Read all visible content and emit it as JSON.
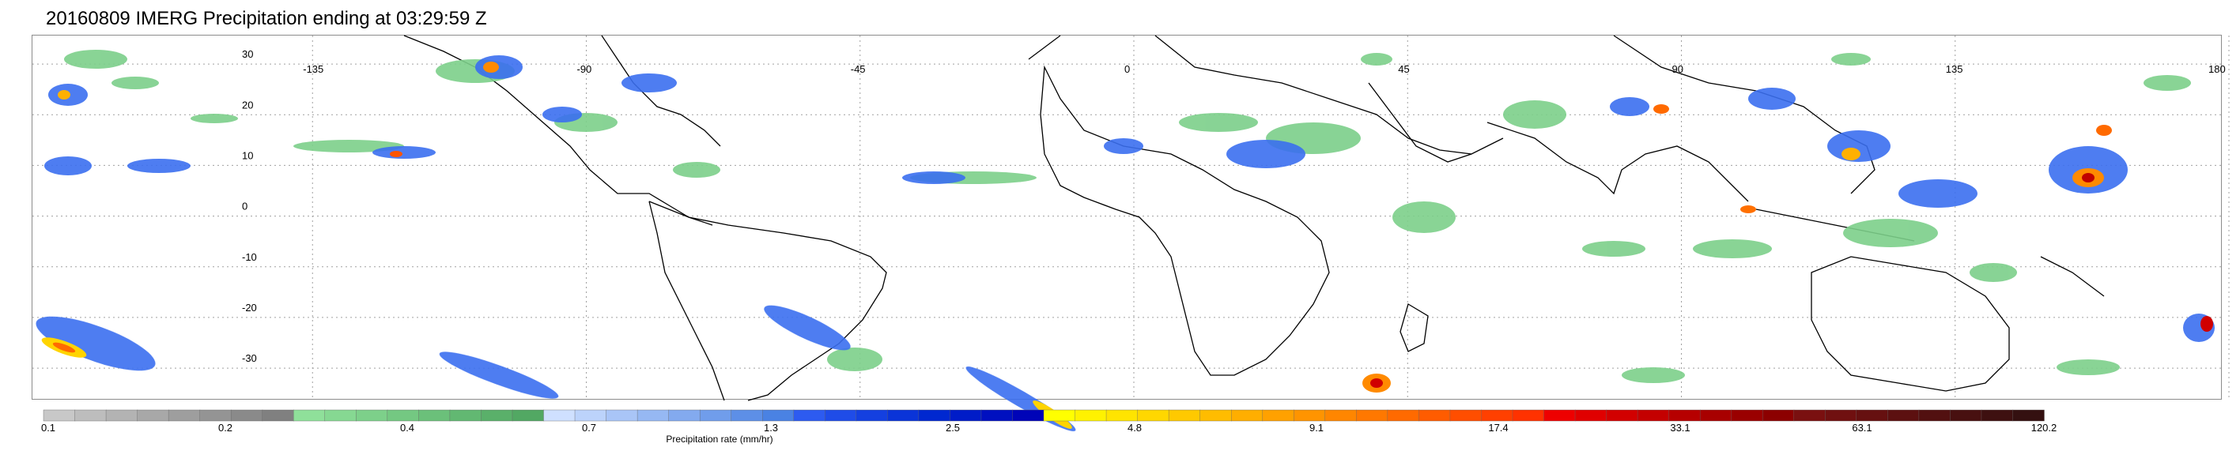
{
  "title": "20160809 IMERG Precipitation ending at 03:29:59 Z",
  "map": {
    "longitude_labels": [
      "-135",
      "-90",
      "-45",
      "0",
      "45",
      "90",
      "135",
      "180"
    ],
    "latitude_labels": [
      "30",
      "20",
      "10",
      "0",
      "-10",
      "-20",
      "-30"
    ],
    "gridlines": "dotted"
  },
  "colorbar": {
    "label": "Precipitation rate (mm/hr)",
    "tick_labels": [
      "0.1",
      "0.2",
      "0.4",
      "0.7",
      "1.3",
      "2.5",
      "4.8",
      "9.1",
      "17.4",
      "33.1",
      "63.1",
      "120.2"
    ],
    "colors": [
      "#c8c8c8",
      "#bdbdbd",
      "#b3b3b3",
      "#a8a8a8",
      "#9e9e9e",
      "#949494",
      "#8a8a8a",
      "#808080",
      "#8fe09a",
      "#86d892",
      "#7dd08a",
      "#74c882",
      "#6bc07a",
      "#62b872",
      "#5ab06a",
      "#52a863",
      "#cfe0ff",
      "#bcd3fb",
      "#a9c5f7",
      "#96b8f3",
      "#83aaef",
      "#709deb",
      "#5d8fe7",
      "#4a82e3",
      "#2d5bf0",
      "#1f4ce8",
      "#1440e0",
      "#0a34d8",
      "#0028d0",
      "#001cc8",
      "#0010c0",
      "#0004b8",
      "#ffff00",
      "#fff200",
      "#ffe400",
      "#ffd700",
      "#ffc900",
      "#ffbc00",
      "#ffae00",
      "#ffa100",
      "#ff9400",
      "#ff8600",
      "#ff7800",
      "#ff6a00",
      "#ff5c00",
      "#ff4e00",
      "#ff4000",
      "#ff3200",
      "#ee0000",
      "#e00000",
      "#d20000",
      "#c40000",
      "#b60000",
      "#a80000",
      "#9a0000",
      "#8c0000",
      "#7a1010",
      "#701010",
      "#661010",
      "#5c1010",
      "#521010",
      "#481010",
      "#3e1010",
      "#341010"
    ]
  }
}
